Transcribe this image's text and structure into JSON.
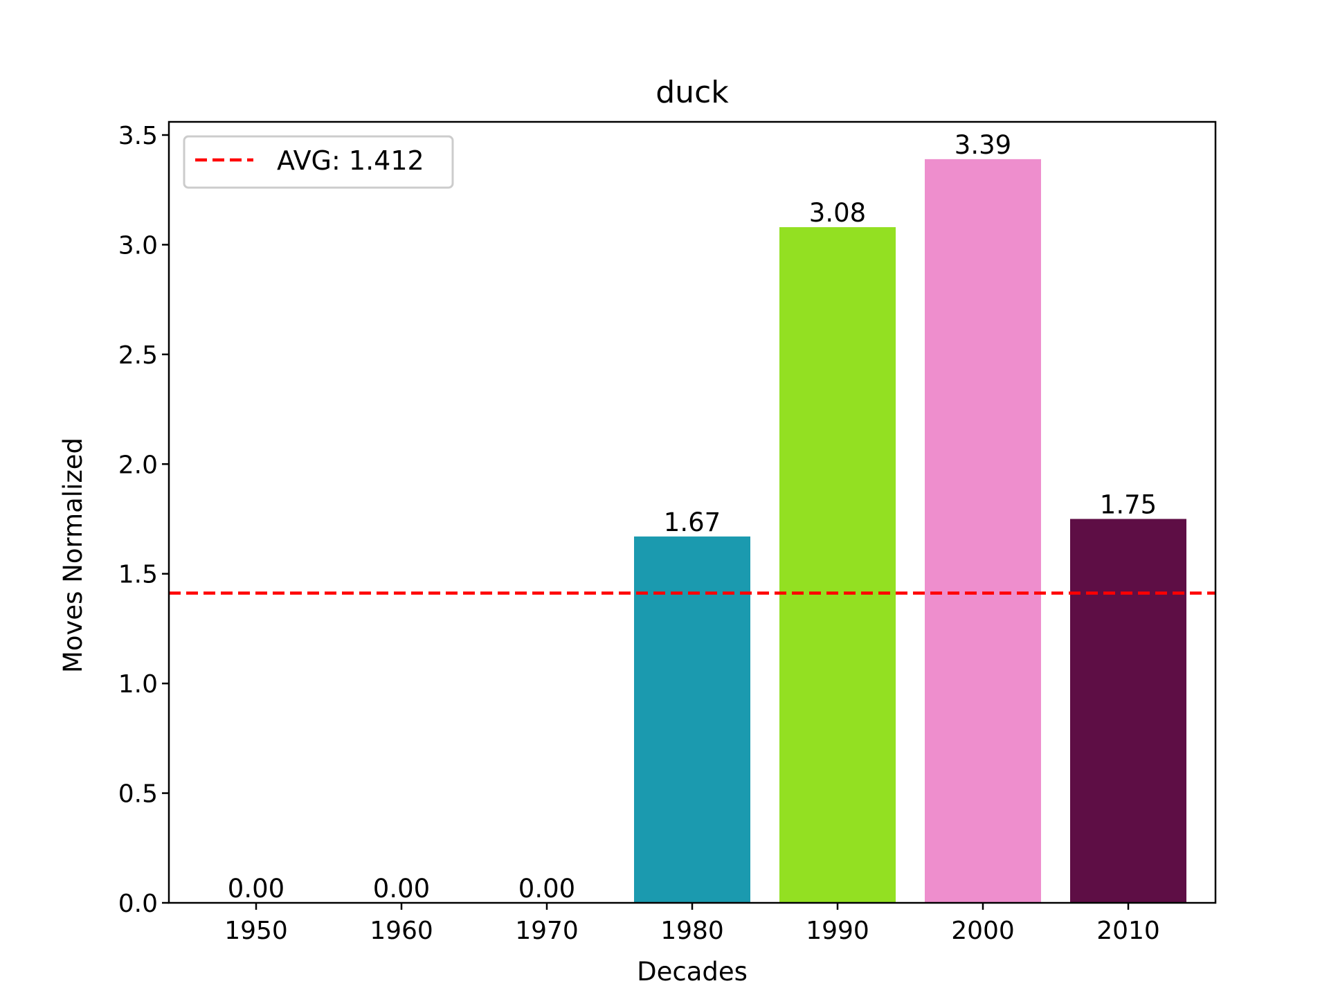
{
  "chart_data": {
    "type": "bar",
    "title": "duck",
    "xlabel": "Decades",
    "ylabel": "Moves Normalized",
    "categories": [
      "1950",
      "1960",
      "1970",
      "1980",
      "1990",
      "2000",
      "2010"
    ],
    "values": [
      0.0,
      0.0,
      0.0,
      1.67,
      3.08,
      3.39,
      1.75
    ],
    "value_labels": [
      "0.00",
      "0.00",
      "0.00",
      "1.67",
      "3.08",
      "3.39",
      "1.75"
    ],
    "bar_colors": [
      "#1f77b4",
      "#1f77b4",
      "#1f77b4",
      "#1b9aaf",
      "#93e022",
      "#ee8ecd",
      "#5e0e45"
    ],
    "ylim": [
      0,
      3.56
    ],
    "yticks": [
      0.0,
      0.5,
      1.0,
      1.5,
      2.0,
      2.5,
      3.0,
      3.5
    ],
    "ytick_labels": [
      "0.0",
      "0.5",
      "1.0",
      "1.5",
      "2.0",
      "2.5",
      "3.0",
      "3.5"
    ],
    "average": {
      "value": 1.412,
      "label": "AVG: 1.412",
      "color": "#ff0000",
      "style": "dashed"
    },
    "legend": {
      "placement": "top-left",
      "entries": [
        "AVG: 1.412"
      ]
    },
    "grid": false
  }
}
